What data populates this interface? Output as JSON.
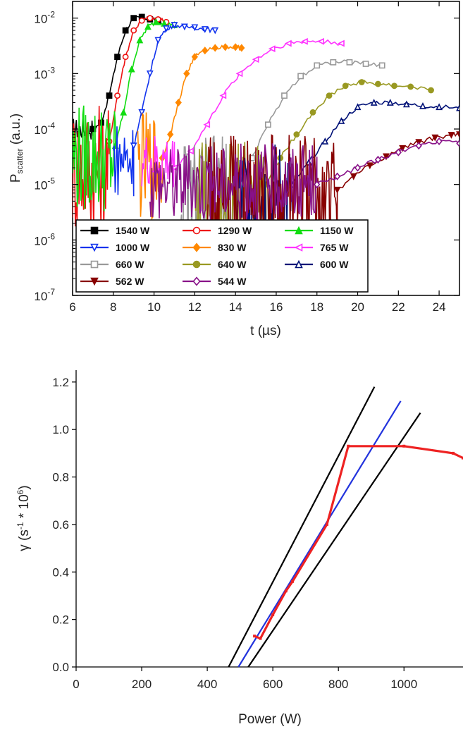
{
  "chart_data": [
    {
      "type": "line",
      "ylog": true,
      "xlabel": "t (µs)",
      "ylabel_main": "P",
      "ylabel_sub": "scatter",
      "ylabel_unit": " (a.u.)",
      "xlim": [
        6,
        25
      ],
      "ylim": [
        1e-07,
        0.02
      ],
      "xticks": [
        6,
        8,
        10,
        12,
        14,
        16,
        18,
        20,
        22,
        24
      ],
      "yticks": [
        {
          "value": 1e-07,
          "base": "10",
          "exp": "-7"
        },
        {
          "value": 1e-06,
          "base": "10",
          "exp": "-6"
        },
        {
          "value": 1e-05,
          "base": "10",
          "exp": "-5"
        },
        {
          "value": 0.0001,
          "base": "10",
          "exp": "-4"
        },
        {
          "value": 0.001,
          "base": "10",
          "exp": "-3"
        },
        {
          "value": 0.01,
          "base": "10",
          "exp": "-2"
        }
      ],
      "legend_position": "bottom-left",
      "series": [
        {
          "name": "1540 W",
          "color": "#000000",
          "marker": "square-filled",
          "noise": {
            "x0": 6.0,
            "x1": 7.0,
            "center": 0.0001,
            "spread": 0.2
          },
          "x": [
            7.0,
            7.4,
            7.8,
            8.2,
            8.6,
            9.0,
            9.4,
            9.8,
            10.2
          ],
          "y": [
            0.0001,
            0.00013,
            0.0004,
            0.002,
            0.006,
            0.01,
            0.0105,
            0.0095,
            0.009
          ]
        },
        {
          "name": "1290 W",
          "color": "#ee1111",
          "marker": "circle-open",
          "noise": {
            "x0": 6.0,
            "x1": 7.8,
            "center": 2e-05,
            "spread": 1.2
          },
          "x": [
            7.8,
            8.2,
            8.6,
            9.0,
            9.4,
            9.8,
            10.2,
            10.6
          ],
          "y": [
            6e-05,
            0.0004,
            0.002,
            0.006,
            0.009,
            0.01,
            0.0095,
            0.0085
          ]
        },
        {
          "name": "1150 W",
          "color": "#11dd11",
          "marker": "triangle-up-filled",
          "noise": {
            "x0": 6.0,
            "x1": 8.1,
            "center": 3e-05,
            "spread": 1.0
          },
          "x": [
            8.1,
            8.5,
            8.9,
            9.3,
            9.7,
            10.1,
            10.5,
            11.0
          ],
          "y": [
            5e-05,
            0.0002,
            0.0012,
            0.004,
            0.007,
            0.0085,
            0.008,
            0.0075
          ]
        },
        {
          "name": "1000 W",
          "color": "#1133ee",
          "marker": "triangle-down-open",
          "noise": {
            "x0": 8.0,
            "x1": 9.0,
            "center": 3e-05,
            "spread": 0.7
          },
          "x": [
            9.0,
            9.4,
            9.8,
            10.2,
            10.6,
            11.0,
            11.5,
            12.0,
            12.5,
            13.0
          ],
          "y": [
            5e-05,
            0.0002,
            0.001,
            0.004,
            0.0065,
            0.0075,
            0.007,
            0.0068,
            0.0063,
            0.006
          ]
        },
        {
          "name": "830 W",
          "color": "#ff8800",
          "marker": "diamond-filled",
          "noise": {
            "x0": 9.2,
            "x1": 10.4,
            "center": 2e-05,
            "spread": 1.0
          },
          "x": [
            10.4,
            10.8,
            11.2,
            11.6,
            12.0,
            12.5,
            13.0,
            13.5,
            14.0,
            14.3
          ],
          "y": [
            3e-05,
            8e-05,
            0.0003,
            0.001,
            0.002,
            0.0026,
            0.0029,
            0.003,
            0.003,
            0.0029
          ]
        },
        {
          "name": "765 W",
          "color": "#ff33ff",
          "marker": "triangle-left-open",
          "noise": {
            "x0": 9.4,
            "x1": 11.0,
            "center": 2.5e-05,
            "spread": 0.5
          },
          "x": [
            11.0,
            11.8,
            12.6,
            13.4,
            14.2,
            15.0,
            15.8,
            16.6,
            17.4,
            18.2,
            19.2
          ],
          "y": [
            2e-05,
            4e-05,
            0.00012,
            0.0004,
            0.001,
            0.0018,
            0.0028,
            0.0035,
            0.0038,
            0.0038,
            0.0035
          ]
        },
        {
          "name": "660 W",
          "color": "#999999",
          "marker": "square-open",
          "noise": {
            "x0": 11.3,
            "x1": 14.0,
            "center": 5e-06,
            "spread": 1.2
          },
          "x": [
            14.0,
            14.8,
            15.6,
            16.4,
            17.2,
            18.0,
            18.8,
            19.6,
            20.4,
            21.2
          ],
          "y": [
            8e-06,
            3e-05,
            0.00012,
            0.0004,
            0.0009,
            0.0014,
            0.0016,
            0.0016,
            0.0015,
            0.0014
          ]
        },
        {
          "name": "640 W",
          "color": "#999922",
          "marker": "circle-filled",
          "noise": {
            "x0": 12.0,
            "x1": 15.5,
            "center": 8e-06,
            "spread": 1.0
          },
          "x": [
            15.5,
            16.2,
            17.0,
            17.8,
            18.6,
            19.4,
            20.2,
            21.0,
            21.8,
            22.6,
            23.6
          ],
          "y": [
            1e-05,
            3e-05,
            8e-05,
            0.0002,
            0.0004,
            0.0006,
            0.0007,
            0.00065,
            0.0006,
            0.00058,
            0.0005
          ]
        },
        {
          "name": "600 W",
          "color": "#001177",
          "marker": "triangle-up-open",
          "noise": {
            "x0": 14.0,
            "x1": 16.8,
            "center": 6e-06,
            "spread": 1.0
          },
          "x": [
            16.8,
            17.6,
            18.4,
            19.2,
            20.0,
            20.8,
            21.6,
            22.4,
            23.2,
            24.0,
            25.0
          ],
          "y": [
            1e-05,
            2.5e-05,
            6e-05,
            0.00014,
            0.00025,
            0.0003,
            0.0003,
            0.00028,
            0.00026,
            0.00025,
            0.00024
          ]
        },
        {
          "name": "562 W",
          "color": "#880000",
          "marker": "triangle-down-filled",
          "noise": {
            "x0": 12.5,
            "x1": 19.0,
            "center": 5e-06,
            "spread": 1.2
          },
          "x": [
            19.0,
            19.8,
            20.6,
            21.4,
            22.2,
            23.0,
            23.8,
            24.6,
            25.0
          ],
          "y": [
            8e-06,
            1.4e-05,
            2.2e-05,
            3.2e-05,
            4.5e-05,
            5.8e-05,
            7e-05,
            7.8e-05,
            8e-05
          ]
        },
        {
          "name": "544 W",
          "color": "#881188",
          "marker": "diamond-open",
          "noise": {
            "x0": 9.8,
            "x1": 18.0,
            "center": 1.1e-05,
            "spread": 0.7
          },
          "x": [
            18.0,
            19.0,
            20.0,
            21.0,
            22.0,
            23.0,
            24.0,
            25.0
          ],
          "y": [
            1e-05,
            1.4e-05,
            2e-05,
            2.8e-05,
            3.8e-05,
            5e-05,
            6e-05,
            5.5e-05
          ]
        }
      ]
    },
    {
      "type": "line",
      "xlabel": "Power (W)",
      "ylabel_main": "γ",
      "ylabel_unit": " (s",
      "ylabel_exp1": "-1",
      "ylabel_mid": " * 10",
      "ylabel_exp2": "6",
      "ylabel_end": ")",
      "xlim": [
        0,
        1180
      ],
      "ylim": [
        0,
        1.25
      ],
      "xticks": [
        0,
        200,
        400,
        600,
        800,
        1000
      ],
      "yticks": [
        "0.0",
        "0.2",
        "0.4",
        "0.6",
        "0.8",
        "1.0",
        "1.2"
      ],
      "measured": {
        "color": "#ee2222",
        "x": [
          544,
          562,
          600,
          640,
          660,
          765,
          830,
          1000,
          1150,
          1180
        ],
        "y": [
          0.13,
          0.12,
          0.22,
          0.32,
          0.36,
          0.6,
          0.93,
          0.93,
          0.9,
          0.88
        ]
      },
      "fit_lines": [
        {
          "color": "#000000",
          "x": [
            465,
            910
          ],
          "y": [
            0.0,
            1.18
          ]
        },
        {
          "color": "#2233dd",
          "x": [
            495,
            990
          ],
          "y": [
            0.0,
            1.12
          ]
        },
        {
          "color": "#000000",
          "x": [
            525,
            1050
          ],
          "y": [
            0.0,
            1.07
          ]
        }
      ]
    }
  ]
}
